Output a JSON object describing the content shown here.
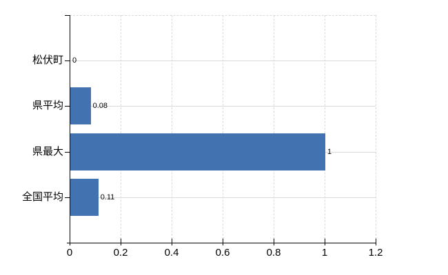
{
  "chart_data": {
    "type": "bar",
    "orientation": "horizontal",
    "title": "",
    "xlabel": "",
    "ylabel": "",
    "categories": [
      "松伏町",
      "県平均",
      "県最大",
      "全国平均"
    ],
    "values": [
      0,
      0.08,
      1,
      0.11
    ],
    "value_labels": [
      "0",
      "0.08",
      "1",
      "0.11"
    ],
    "x_tick_labels": [
      "0",
      "0.2",
      "0.4",
      "0.6",
      "0.8",
      "1",
      "1.2"
    ],
    "x_tick_values": [
      0,
      0.2,
      0.4,
      0.6,
      0.8,
      1.0,
      1.2
    ],
    "xlim": [
      0,
      1.2
    ],
    "grid": true,
    "legend": false,
    "bar_color": "#4372b1",
    "gridline_color": "#d9d9d9",
    "axis_color": "#000000",
    "text_color": "#000000",
    "background_color": "#ffffff"
  }
}
